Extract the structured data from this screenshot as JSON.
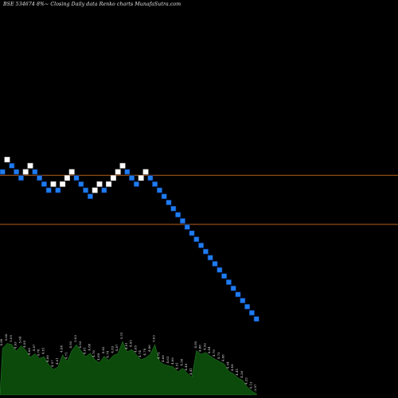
{
  "header": {
    "title": "BSE 534674  8%~  Closing Daily data  Renko  charts MunafaSutra.com"
  },
  "colors": {
    "background": "#000000",
    "up_brick": "#ffffff",
    "down_brick": "#1e7cf0",
    "brick_border": "#0a2a6a",
    "level_line": "#b4611c",
    "volume_fill": "#0b4a0b",
    "volume_stroke": "#2e8a2e"
  },
  "chart_data": {
    "type": "renko",
    "series": [
      {
        "bricks": [
          {
            "dir": "down",
            "level": 7
          },
          {
            "dir": "up",
            "level": 9
          },
          {
            "dir": "down",
            "level": 8
          },
          {
            "dir": "down",
            "level": 7
          },
          {
            "dir": "down",
            "level": 6
          },
          {
            "dir": "up",
            "level": 7
          },
          {
            "dir": "up",
            "level": 8
          },
          {
            "dir": "down",
            "level": 7
          },
          {
            "dir": "down",
            "level": 6
          },
          {
            "dir": "down",
            "level": 5
          },
          {
            "dir": "down",
            "level": 4
          },
          {
            "dir": "up",
            "level": 5
          },
          {
            "dir": "down",
            "level": 4
          },
          {
            "dir": "up",
            "level": 5
          },
          {
            "dir": "up",
            "level": 6
          },
          {
            "dir": "up",
            "level": 7
          },
          {
            "dir": "down",
            "level": 6
          },
          {
            "dir": "down",
            "level": 5
          },
          {
            "dir": "down",
            "level": 4
          },
          {
            "dir": "down",
            "level": 3
          },
          {
            "dir": "up",
            "level": 4
          },
          {
            "dir": "up",
            "level": 5
          },
          {
            "dir": "down",
            "level": 4
          },
          {
            "dir": "up",
            "level": 5
          },
          {
            "dir": "up",
            "level": 6
          },
          {
            "dir": "up",
            "level": 7
          },
          {
            "dir": "up",
            "level": 8
          },
          {
            "dir": "down",
            "level": 7
          },
          {
            "dir": "down",
            "level": 6
          },
          {
            "dir": "down",
            "level": 5
          },
          {
            "dir": "up",
            "level": 6
          },
          {
            "dir": "up",
            "level": 7
          },
          {
            "dir": "down",
            "level": 6
          },
          {
            "dir": "down",
            "level": 5
          },
          {
            "dir": "down",
            "level": 4
          },
          {
            "dir": "down",
            "level": 3
          },
          {
            "dir": "down",
            "level": 2
          },
          {
            "dir": "down",
            "level": 1
          },
          {
            "dir": "down",
            "level": 0
          },
          {
            "dir": "down",
            "level": -1
          },
          {
            "dir": "down",
            "level": -2
          },
          {
            "dir": "down",
            "level": -3
          },
          {
            "dir": "down",
            "level": -4
          },
          {
            "dir": "down",
            "level": -5
          },
          {
            "dir": "down",
            "level": -6
          },
          {
            "dir": "down",
            "level": -7
          },
          {
            "dir": "down",
            "level": -8
          },
          {
            "dir": "down",
            "level": -9
          },
          {
            "dir": "down",
            "level": -10
          },
          {
            "dir": "down",
            "level": -11
          },
          {
            "dir": "down",
            "level": -12
          },
          {
            "dir": "down",
            "level": -13
          },
          {
            "dir": "down",
            "level": -14
          },
          {
            "dir": "down",
            "level": -15
          },
          {
            "dir": "down",
            "level": -16
          },
          {
            "dir": "down",
            "level": -17
          }
        ]
      }
    ],
    "reference_lines": [
      {
        "level": 6
      },
      {
        "level": -2
      }
    ],
    "volume_labels": [
      "4.99",
      "5.08",
      "5.05",
      "4.93",
      "5.04",
      "4.95",
      "4.80",
      "4.87",
      "4.78",
      "4.81",
      "4.66",
      "4.57",
      "4.61",
      "4.84",
      "4.71",
      "4.93",
      "5.03",
      "4.93",
      "4.81",
      "4.88",
      "4.76",
      "4.69",
      "4.82",
      "4.74",
      "4.83",
      "4.87",
      "5.11",
      "4.91",
      "4.95",
      "4.85",
      "4.74",
      "4.79",
      "4.86",
      "5.03",
      "4.72",
      "4.66",
      "4.63",
      "4.60",
      "4.51",
      "4.58",
      "4.49",
      "4.41",
      "4.95",
      "4.88",
      "4.92",
      "4.84",
      "4.79",
      "4.73",
      "4.68",
      "4.54",
      "4.49",
      "4.41",
      "4.36",
      "4.22",
      "4.13",
      "3.97"
    ],
    "volume_values": [
      0.77,
      0.85,
      0.83,
      0.72,
      0.81,
      0.74,
      0.62,
      0.68,
      0.6,
      0.63,
      0.5,
      0.42,
      0.46,
      0.66,
      0.55,
      0.73,
      0.83,
      0.73,
      0.63,
      0.69,
      0.58,
      0.53,
      0.64,
      0.57,
      0.65,
      0.68,
      0.88,
      0.71,
      0.75,
      0.66,
      0.58,
      0.61,
      0.67,
      0.83,
      0.55,
      0.5,
      0.48,
      0.46,
      0.38,
      0.44,
      0.36,
      0.29,
      0.73,
      0.67,
      0.7,
      0.64,
      0.59,
      0.55,
      0.51,
      0.39,
      0.35,
      0.28,
      0.24,
      0.13,
      0.06,
      0.02
    ]
  }
}
